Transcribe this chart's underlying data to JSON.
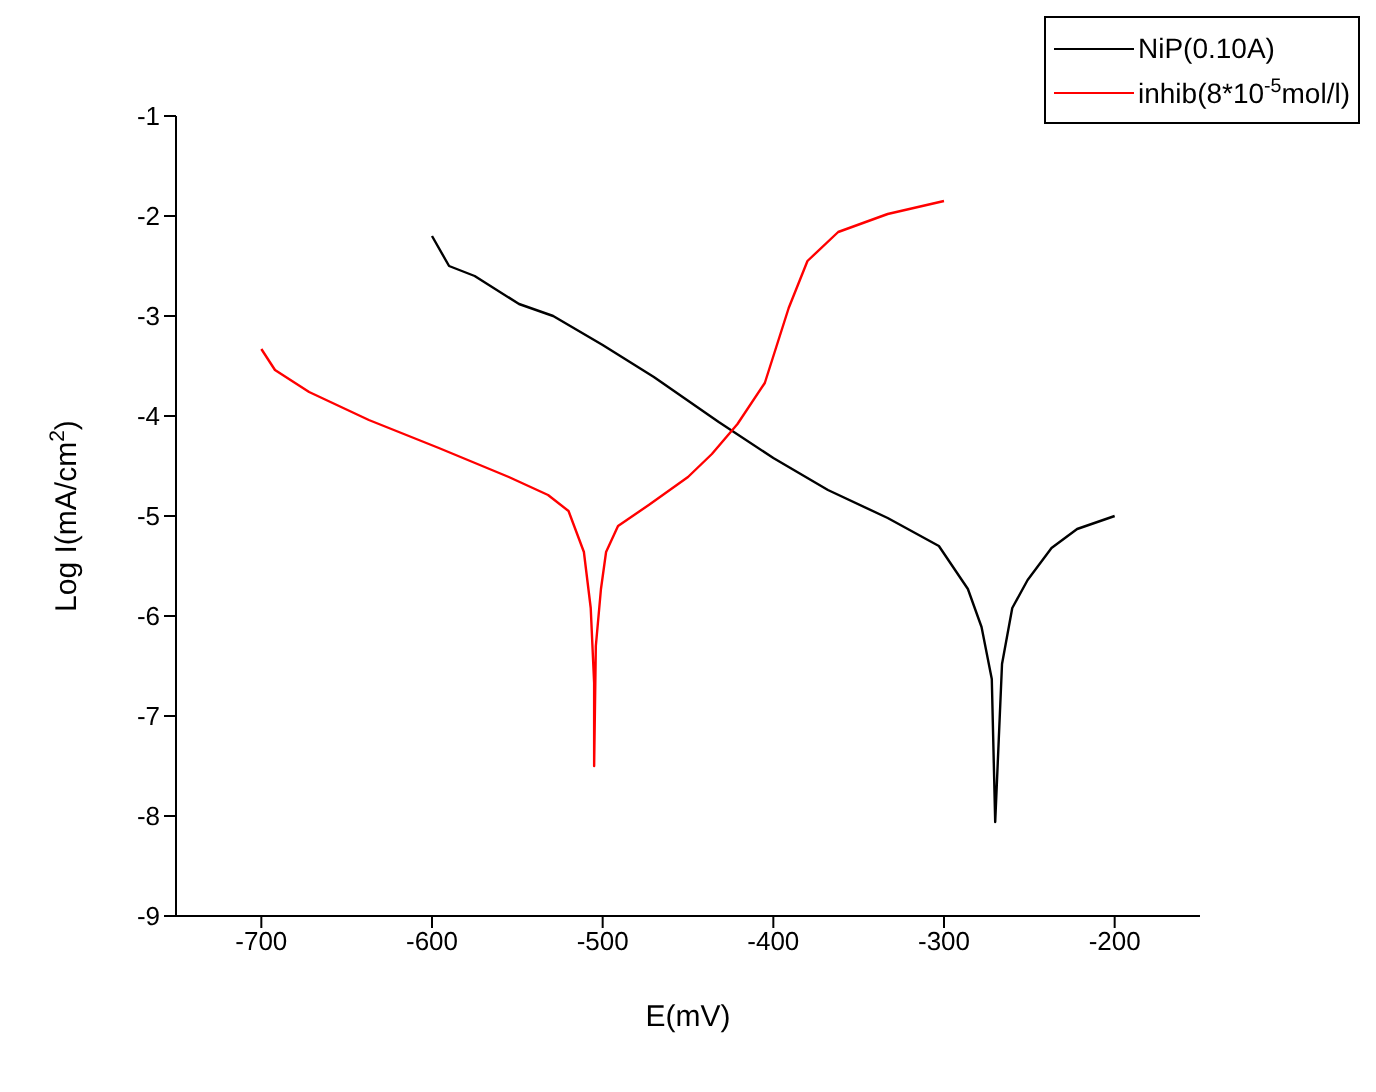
{
  "chart_data": {
    "type": "line",
    "xlabel": "E(mV)",
    "ylabel": "Log I(mA/cm$^{2}$)",
    "xlim": [
      -750,
      -150
    ],
    "xticks": [
      -700,
      -600,
      -500,
      -400,
      -300,
      -200
    ],
    "ylim": [
      -9,
      -1
    ],
    "yticks": [
      -9,
      -8,
      -7,
      -6,
      -5,
      -4,
      -3,
      -2,
      -1
    ],
    "grid": false,
    "legend": "top right",
    "marker": "none",
    "line_style": "solid",
    "series": [
      {
        "name": "NiP(0.10A)",
        "color": "#000000",
        "x": [
          -600,
          -590,
          -575,
          -549,
          -529,
          -500,
          -470,
          -432,
          -400,
          -368,
          -333,
          -303,
          -286,
          -278,
          -272,
          -270,
          -266,
          -260,
          -251,
          -237,
          -222,
          -200
        ],
        "values": [
          -2.2,
          -2.5,
          -2.6,
          -2.88,
          -3.0,
          -3.29,
          -3.61,
          -4.06,
          -4.42,
          -4.74,
          -5.02,
          -5.3,
          -5.73,
          -6.11,
          -6.63,
          -8.06,
          -6.48,
          -5.92,
          -5.64,
          -5.32,
          -5.13,
          -5.0
        ]
      },
      {
        "name": "inhib(8*10$^{-5}$mol/l)",
        "color": "#ff0000",
        "x": [
          -700,
          -692,
          -672,
          -637,
          -596,
          -555,
          -532,
          -520,
          -511,
          -507,
          -505,
          -505,
          -504,
          -501,
          -498,
          -491,
          -473,
          -450,
          -436,
          -421,
          -405,
          -391,
          -380,
          -362,
          -333,
          -300
        ],
        "values": [
          -3.33,
          -3.54,
          -3.76,
          -4.04,
          -4.32,
          -4.61,
          -4.79,
          -4.95,
          -5.36,
          -5.92,
          -6.67,
          -7.5,
          -6.3,
          -5.73,
          -5.36,
          -5.1,
          -4.89,
          -4.61,
          -4.38,
          -4.08,
          -3.67,
          -2.92,
          -2.45,
          -2.16,
          -1.98,
          -1.85
        ]
      }
    ]
  }
}
